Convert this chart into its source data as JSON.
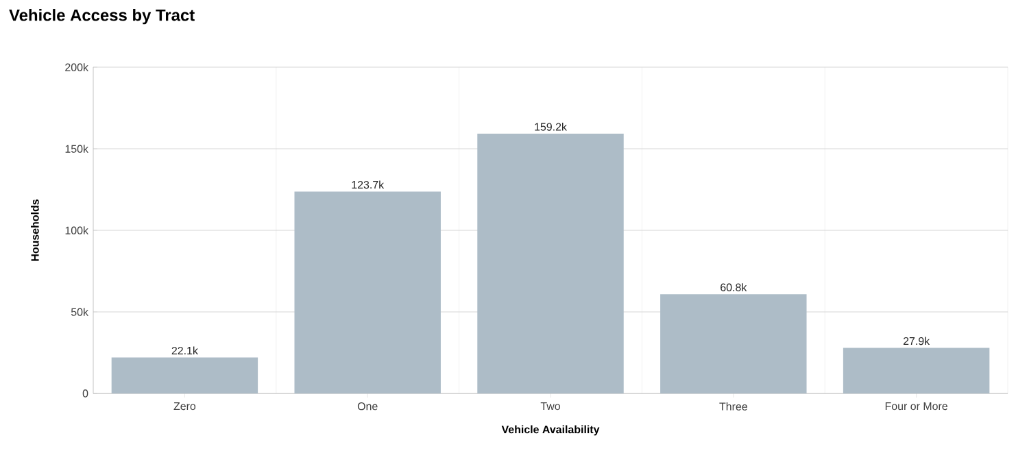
{
  "chart_data": {
    "type": "bar",
    "title": "Vehicle Access by Tract",
    "xlabel": "Vehicle Availability",
    "ylabel": "Households",
    "categories": [
      "Zero",
      "One",
      "Two",
      "Three",
      "Four or More"
    ],
    "values": [
      22100,
      123700,
      159200,
      60800,
      27900
    ],
    "value_labels": [
      "22.1k",
      "123.7k",
      "159.2k",
      "60.8k",
      "27.9k"
    ],
    "color": "#adbcc7",
    "ylim": [
      0,
      200000
    ],
    "yticks": [
      {
        "value": 0,
        "label": "0"
      },
      {
        "value": 50000,
        "label": "50k"
      },
      {
        "value": 100000,
        "label": "100k"
      },
      {
        "value": 150000,
        "label": "150k"
      },
      {
        "value": 200000,
        "label": "200k"
      }
    ],
    "grid": true
  }
}
